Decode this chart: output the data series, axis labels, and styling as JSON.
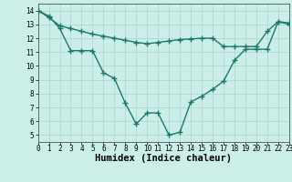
{
  "xlabel": "Humidex (Indice chaleur)",
  "ylabel": "",
  "background_color": "#cceee8",
  "grid_color": "#aad4cc",
  "line_color": "#1a7a6a",
  "line1_x": [
    0,
    1,
    2,
    3,
    4,
    5,
    6,
    7,
    8,
    9,
    10,
    11,
    12,
    13,
    14,
    15,
    16,
    17,
    18,
    19,
    20,
    21,
    22,
    23
  ],
  "line1_y": [
    14.0,
    13.6,
    12.7,
    11.1,
    11.1,
    11.1,
    9.5,
    9.1,
    7.3,
    5.8,
    6.6,
    6.6,
    5.0,
    5.2,
    7.4,
    7.8,
    8.3,
    8.9,
    10.4,
    11.2,
    11.2,
    11.2,
    13.2,
    13.1
  ],
  "line2_x": [
    0,
    1,
    2,
    3,
    4,
    5,
    6,
    7,
    8,
    9,
    10,
    11,
    12,
    13,
    14,
    15,
    16,
    17,
    18,
    19,
    20,
    21,
    22,
    23
  ],
  "line2_y": [
    14.0,
    13.5,
    12.9,
    12.7,
    12.5,
    12.3,
    12.15,
    12.0,
    11.85,
    11.7,
    11.6,
    11.7,
    11.8,
    11.9,
    11.95,
    12.0,
    12.0,
    11.4,
    11.4,
    11.4,
    11.4,
    12.5,
    13.2,
    13.0
  ],
  "xlim": [
    0,
    23
  ],
  "ylim": [
    4.5,
    14.5
  ],
  "yticks": [
    5,
    6,
    7,
    8,
    9,
    10,
    11,
    12,
    13,
    14
  ],
  "xticks": [
    0,
    1,
    2,
    3,
    4,
    5,
    6,
    7,
    8,
    9,
    10,
    11,
    12,
    13,
    14,
    15,
    16,
    17,
    18,
    19,
    20,
    21,
    22,
    23
  ],
  "marker": "+",
  "markersize": 4,
  "linewidth": 1.0,
  "tick_fontsize": 5.5,
  "label_fontsize": 7.5
}
